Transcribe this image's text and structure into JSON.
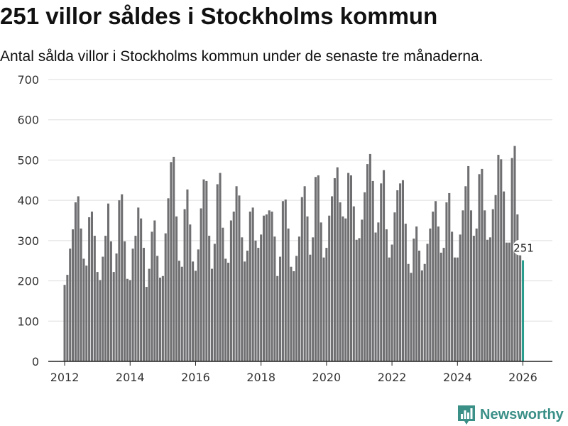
{
  "header": {
    "title": "251 villor såldes i Stockholms kommun",
    "subtitle": "Antal sålda villor i Stockholms kommun under de senaste tre månaderna."
  },
  "brand": {
    "name": "Newsworthy",
    "icon": "bar-chart-logo-icon",
    "color": "#3a8f87"
  },
  "colors": {
    "bar": "#6f6f72",
    "highlight": "#2a9d8f",
    "grid": "#dddddd",
    "axis": "#222222"
  },
  "chart_data": {
    "type": "bar",
    "title": "251 villor såldes i Stockholms kommun",
    "subtitle": "Antal sålda villor i Stockholms kommun under de senaste tre månaderna.",
    "xlabel": "",
    "ylabel": "",
    "ylim": [
      0,
      700
    ],
    "yticks": [
      0,
      100,
      200,
      300,
      400,
      500,
      600,
      700
    ],
    "xlim": [
      2011.5,
      2026.9
    ],
    "xticks": [
      2012,
      2014,
      2016,
      2018,
      2020,
      2022,
      2024,
      2026
    ],
    "grid": true,
    "start": {
      "year": 2012,
      "month": 1
    },
    "interval": "monthly rolling three-month sum",
    "highlight_last": true,
    "last_label": "251",
    "values": [
      190,
      215,
      280,
      328,
      395,
      410,
      330,
      255,
      238,
      358,
      372,
      312,
      222,
      202,
      260,
      312,
      392,
      298,
      222,
      268,
      400,
      415,
      298,
      205,
      202,
      280,
      312,
      382,
      355,
      282,
      185,
      230,
      322,
      350,
      262,
      208,
      212,
      318,
      405,
      495,
      508,
      360,
      250,
      235,
      378,
      427,
      340,
      248,
      225,
      278,
      380,
      452,
      448,
      312,
      230,
      292,
      440,
      468,
      332,
      255,
      245,
      350,
      372,
      435,
      412,
      308,
      248,
      275,
      372,
      382,
      300,
      282,
      315,
      362,
      365,
      375,
      372,
      310,
      212,
      260,
      398,
      402,
      330,
      235,
      224,
      262,
      310,
      408,
      435,
      360,
      265,
      308,
      458,
      462,
      345,
      258,
      282,
      362,
      410,
      455,
      482,
      395,
      360,
      355,
      468,
      462,
      385,
      302,
      306,
      352,
      420,
      490,
      515,
      448,
      320,
      345,
      442,
      475,
      328,
      258,
      290,
      370,
      425,
      442,
      450,
      342,
      242,
      220,
      305,
      335,
      275,
      226,
      242,
      292,
      330,
      372,
      398,
      335,
      270,
      282,
      395,
      418,
      322,
      258,
      258,
      315,
      375,
      435,
      485,
      375,
      312,
      330,
      465,
      478,
      375,
      302,
      308,
      378,
      413,
      513,
      502,
      422,
      295,
      295,
      505,
      535,
      365,
      265,
      251
    ]
  }
}
